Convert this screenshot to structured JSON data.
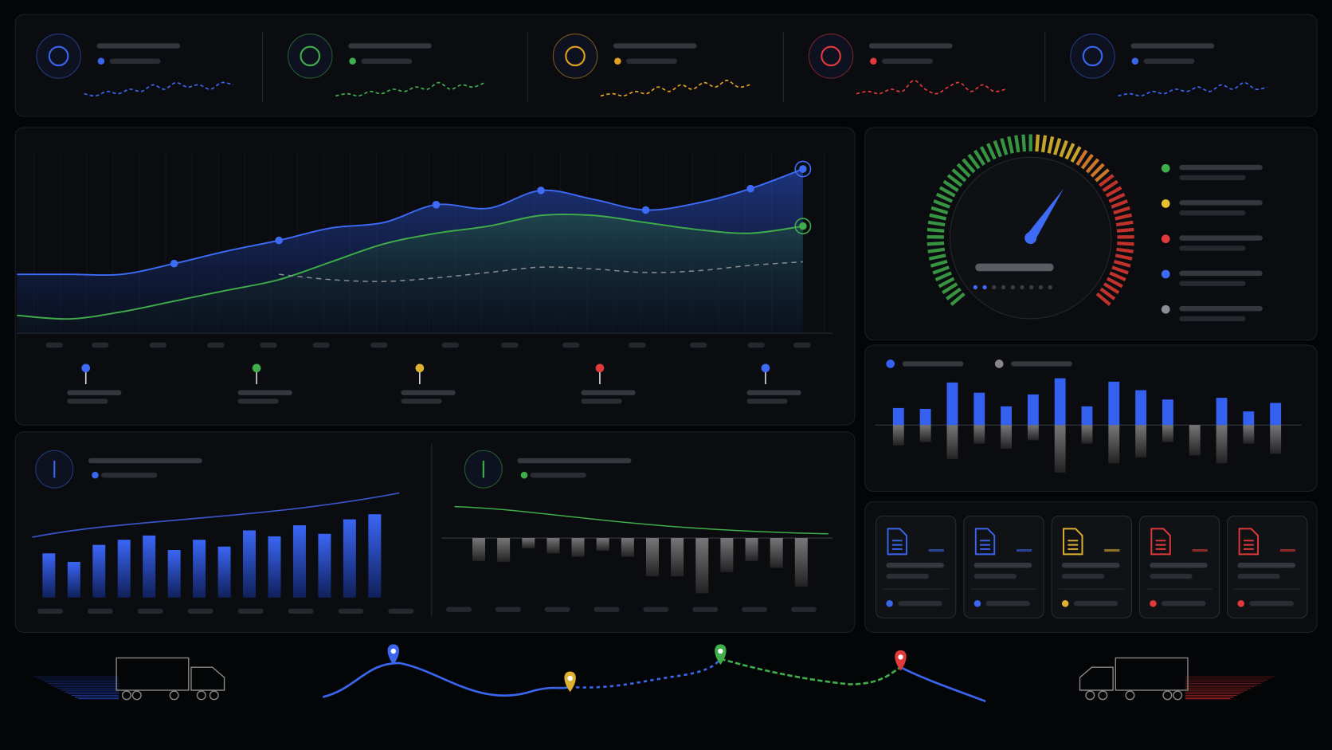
{
  "kpis": [
    {
      "color": "#3a66ee",
      "spark": [
        3,
        2,
        4,
        3,
        5,
        4,
        7,
        5,
        8,
        6,
        7,
        5,
        8,
        7
      ]
    },
    {
      "color": "#3fae4a",
      "spark": [
        2,
        3,
        2,
        4,
        3,
        5,
        4,
        6,
        5,
        8,
        5,
        7,
        6,
        8
      ]
    },
    {
      "color": "#e0a020",
      "spark": [
        2,
        3,
        2,
        4,
        3,
        6,
        4,
        7,
        5,
        8,
        6,
        9,
        6,
        7
      ]
    },
    {
      "color": "#e03a3a",
      "spark": [
        3,
        4,
        3,
        5,
        4,
        9,
        5,
        3,
        6,
        8,
        4,
        7,
        4,
        5
      ]
    },
    {
      "color": "#3a66ee",
      "spark": [
        2,
        3,
        2,
        4,
        3,
        5,
        4,
        6,
        4,
        7,
        5,
        8,
        5,
        6
      ]
    }
  ],
  "main_chart": {
    "type": "line",
    "ylim": [
      0,
      100
    ],
    "series": [
      {
        "color": "#3d6bf5",
        "values": [
          33,
          33,
          33,
          39,
          46,
          52,
          59,
          62,
          72,
          70,
          80,
          75,
          69,
          73,
          81,
          92
        ]
      },
      {
        "color": "#3fae4a",
        "values": [
          10,
          8,
          12,
          18,
          24,
          30,
          40,
          50,
          56,
          60,
          66,
          66,
          62,
          58,
          56,
          60
        ]
      },
      {
        "color": "#8a8d93",
        "values": [
          null,
          null,
          null,
          null,
          null,
          33,
          30,
          29,
          31,
          34,
          37,
          36,
          34,
          35,
          38,
          40
        ]
      }
    ],
    "milestones": [
      "#3d6bf5",
      "#3fae4a",
      "#e0b030",
      "#e03a3a",
      "#3d6bf5"
    ]
  },
  "gauge": {
    "value": 63,
    "range": [
      0,
      100
    ],
    "zones": [
      {
        "to": 50,
        "color": "#3fae4a"
      },
      {
        "to": 62,
        "color": "#e8c030"
      },
      {
        "to": 70,
        "color": "#f08a30"
      },
      {
        "to": 100,
        "color": "#e03a30"
      }
    ],
    "legend": [
      "#3fae4a",
      "#e8c030",
      "#e03a3a",
      "#3d6bf5",
      "#8a8d93"
    ]
  },
  "bar_chart": {
    "type": "bar",
    "ylim": [
      -60,
      60
    ],
    "series": [
      {
        "color": "#3561f0",
        "values": [
          20,
          19,
          50,
          38,
          22,
          36,
          55,
          22,
          51,
          41,
          30,
          0,
          32,
          16,
          26
        ]
      },
      {
        "color": "#6b6e74",
        "values": [
          -24,
          -20,
          -40,
          -22,
          -28,
          -18,
          -56,
          -22,
          -45,
          -38,
          -20,
          -36,
          -45,
          -22,
          -34
        ]
      }
    ]
  },
  "inbound": {
    "type": "bar",
    "color": "#3561f0",
    "ylim": [
      0,
      110
    ],
    "values": [
      52,
      42,
      62,
      68,
      73,
      56,
      68,
      60,
      79,
      72,
      85,
      75,
      92,
      98
    ]
  },
  "outbound": {
    "type": "bar",
    "color": "#6b6e74",
    "ylim": [
      -70,
      0
    ],
    "values": [
      -27,
      -28,
      -12,
      -18,
      -22,
      -15,
      -22,
      -45,
      -45,
      -65,
      -40,
      -27,
      -35,
      -57
    ]
  },
  "documents": [
    "#3a66ee",
    "#3a66ee",
    "#e0b030",
    "#e03a3a",
    "#e03a3a"
  ]
}
